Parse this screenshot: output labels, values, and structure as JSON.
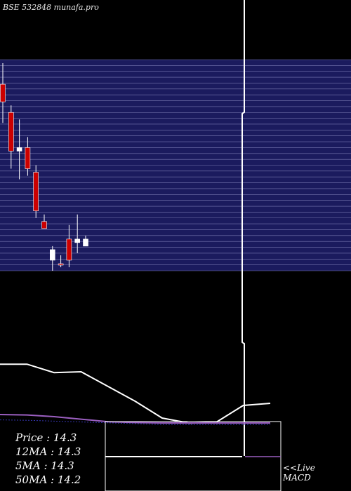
{
  "header": {
    "title": "BSE 532848 munafa.pro"
  },
  "stats": [
    {
      "label": "Price",
      "value": "14.3",
      "text": "Price   : 14.3"
    },
    {
      "label": "12MA",
      "value": "14.3",
      "text": "12MA : 14.3"
    },
    {
      "label": "5MA",
      "value": "14.3",
      "text": "5MA : 14.3"
    },
    {
      "label": "50MA",
      "value": "14.2",
      "text": "50MA : 14.2"
    }
  ],
  "macd_link": {
    "line1": "<<Live",
    "line2": "MACD"
  },
  "colors": {
    "background": "#000000",
    "band": "#1b1b5e",
    "grid": "#9a9ad0",
    "candle_down": "#cc0000",
    "candle_up": "#ffffff",
    "ma_line": "#ffffff",
    "signal_line": "#9b5fc0",
    "volume_line": "#3333aa"
  },
  "chart_data": {
    "type": "candlestick",
    "price_range": [
      13.2,
      16.2
    ],
    "candles": [
      {
        "open": 15.85,
        "high": 16.15,
        "low": 15.3,
        "close": 15.6
      },
      {
        "open": 15.45,
        "high": 15.55,
        "low": 14.65,
        "close": 14.9
      },
      {
        "open": 14.9,
        "high": 15.35,
        "low": 14.5,
        "close": 14.95
      },
      {
        "open": 14.95,
        "high": 15.1,
        "low": 14.55,
        "close": 14.65
      },
      {
        "open": 14.6,
        "high": 14.7,
        "low": 13.95,
        "close": 14.05
      },
      {
        "open": 13.9,
        "high": 14.0,
        "low": 13.8,
        "close": 13.8
      },
      {
        "open": 13.35,
        "high": 13.55,
        "low": 13.2,
        "close": 13.5
      },
      {
        "open": 13.3,
        "high": 13.42,
        "low": 13.25,
        "close": 13.28
      },
      {
        "open": 13.65,
        "high": 13.85,
        "low": 13.25,
        "close": 13.35
      },
      {
        "open": 13.6,
        "high": 14.0,
        "low": 13.45,
        "close": 13.65
      },
      {
        "open": 13.55,
        "high": 13.7,
        "low": 13.55,
        "close": 13.65
      }
    ],
    "ma_line": [
      0.02,
      0.02,
      0.22,
      0.2,
      0.55,
      0.9,
      1.3,
      1.42,
      1.4,
      1.0,
      0.95
    ],
    "signal_line": [
      0.05,
      0.06,
      0.1,
      0.16,
      0.22,
      0.24,
      0.25,
      0.25,
      0.25,
      0.25,
      0.25
    ],
    "volume_baseline": [
      0.01,
      0.02,
      0.04,
      0.06,
      0.08,
      0.1,
      0.12,
      0.12,
      0.12,
      0.12,
      0.12
    ]
  }
}
